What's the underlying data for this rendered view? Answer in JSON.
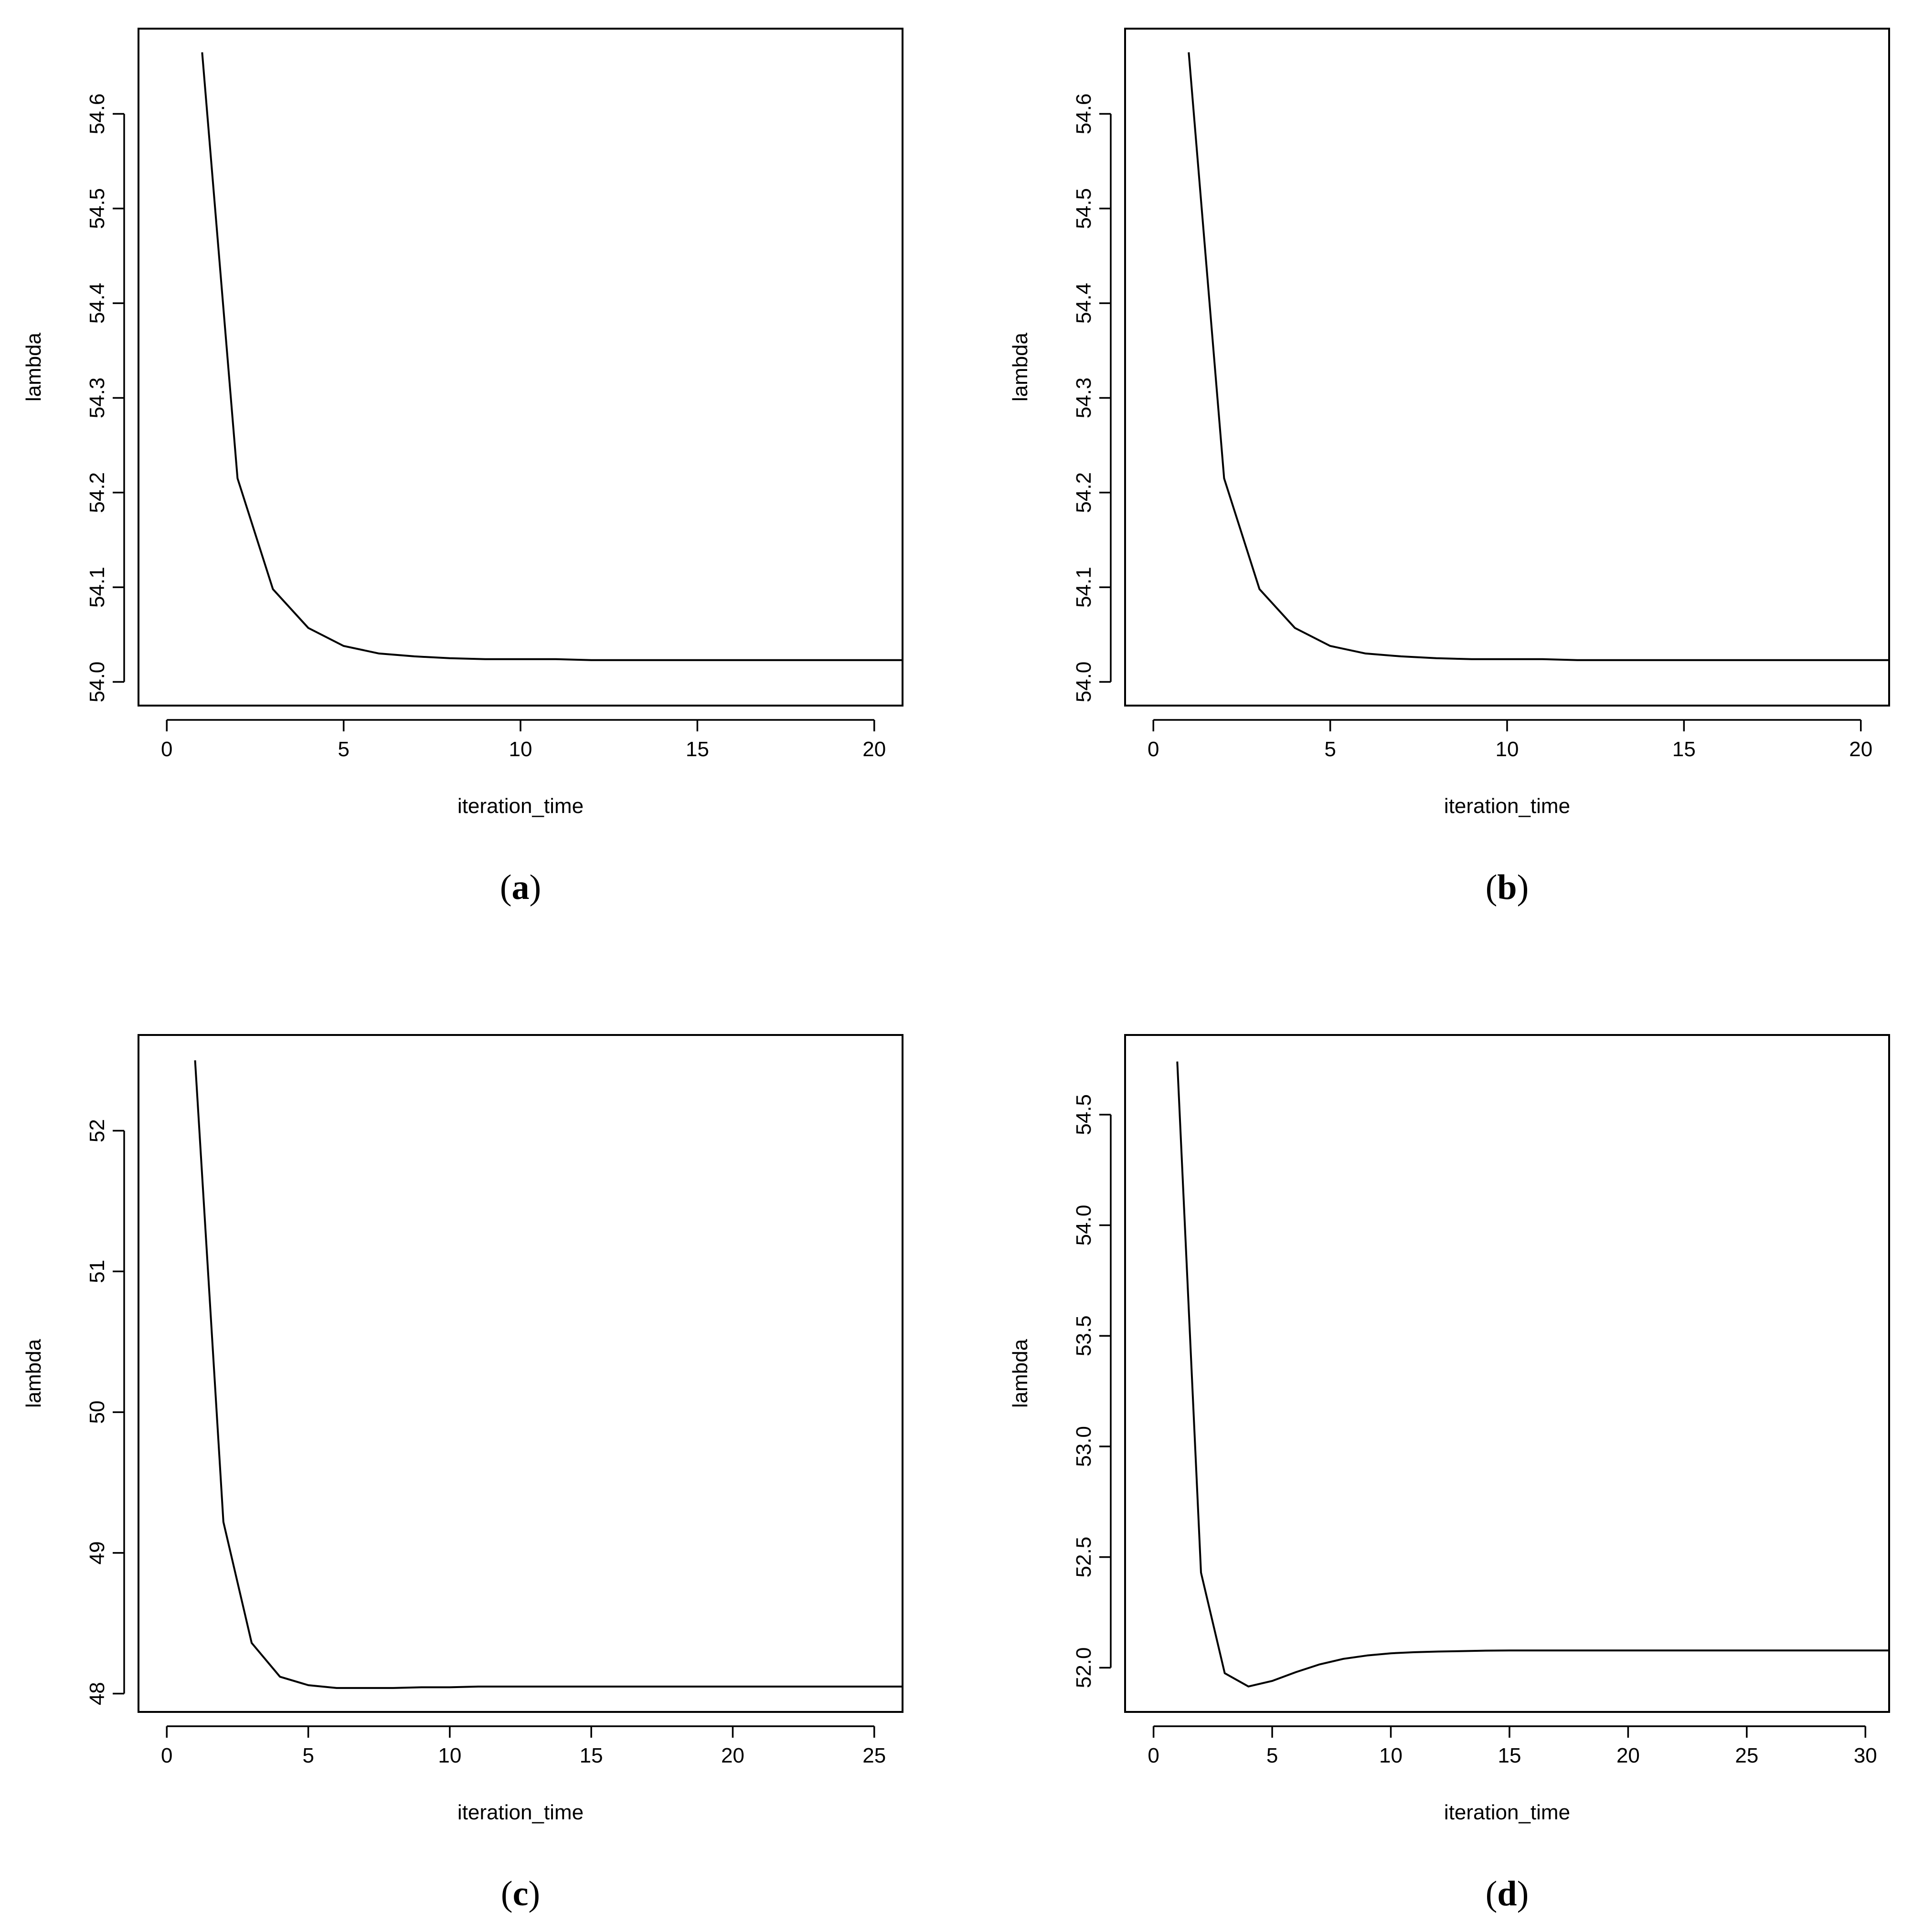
{
  "chart_data": [
    {
      "type": "line",
      "caption": "a",
      "xlabel": "iteration_time",
      "ylabel": "lambda",
      "xlim": [
        -0.8,
        20.8
      ],
      "ylim": [
        53.975,
        54.69
      ],
      "xticks": [
        0,
        5,
        10,
        15,
        20
      ],
      "yticks": [
        54.0,
        54.1,
        54.2,
        54.3,
        54.4,
        54.5,
        54.6
      ],
      "ytick_decimals": 1,
      "grid": false,
      "x": [
        1,
        2,
        3,
        4,
        5,
        6,
        7,
        8,
        9,
        10,
        11,
        12,
        13,
        14,
        15,
        16,
        17,
        18,
        19,
        20,
        21
      ],
      "y": [
        54.665,
        54.215,
        54.098,
        54.057,
        54.038,
        54.03,
        54.027,
        54.025,
        54.024,
        54.024,
        54.024,
        54.023,
        54.023,
        54.023,
        54.023,
        54.023,
        54.023,
        54.023,
        54.023,
        54.023,
        54.023
      ]
    },
    {
      "type": "line",
      "caption": "b",
      "xlabel": "iteration_time",
      "ylabel": "lambda",
      "xlim": [
        -0.8,
        20.8
      ],
      "ylim": [
        53.975,
        54.69
      ],
      "xticks": [
        0,
        5,
        10,
        15,
        20
      ],
      "yticks": [
        54.0,
        54.1,
        54.2,
        54.3,
        54.4,
        54.5,
        54.6
      ],
      "ytick_decimals": 1,
      "grid": false,
      "x": [
        1,
        2,
        3,
        4,
        5,
        6,
        7,
        8,
        9,
        10,
        11,
        12,
        13,
        14,
        15,
        16,
        17,
        18,
        19,
        20,
        21
      ],
      "y": [
        54.665,
        54.215,
        54.098,
        54.057,
        54.038,
        54.03,
        54.027,
        54.025,
        54.024,
        54.024,
        54.024,
        54.023,
        54.023,
        54.023,
        54.023,
        54.023,
        54.023,
        54.023,
        54.023,
        54.023,
        54.023
      ]
    },
    {
      "type": "line",
      "caption": "c",
      "xlabel": "iteration_time",
      "ylabel": "lambda",
      "xlim": [
        -1.0,
        26.0
      ],
      "ylim": [
        47.87,
        52.68
      ],
      "xticks": [
        0,
        5,
        10,
        15,
        20,
        25
      ],
      "yticks": [
        48,
        49,
        50,
        51,
        52
      ],
      "ytick_decimals": 0,
      "grid": false,
      "x": [
        1,
        2,
        3,
        4,
        5,
        6,
        7,
        8,
        9,
        10,
        11,
        12,
        13,
        14,
        15,
        16,
        17,
        18,
        19,
        20,
        21,
        22,
        23,
        24,
        25,
        26
      ],
      "y": [
        52.5,
        49.22,
        48.36,
        48.12,
        48.06,
        48.04,
        48.04,
        48.04,
        48.045,
        48.045,
        48.05,
        48.05,
        48.05,
        48.05,
        48.05,
        48.05,
        48.05,
        48.05,
        48.05,
        48.05,
        48.05,
        48.05,
        48.05,
        48.05,
        48.05,
        48.05
      ]
    },
    {
      "type": "line",
      "caption": "d",
      "xlabel": "iteration_time",
      "ylabel": "lambda",
      "xlim": [
        -1.2,
        31.0
      ],
      "ylim": [
        51.8,
        54.86
      ],
      "xticks": [
        0,
        5,
        10,
        15,
        20,
        25,
        30
      ],
      "yticks": [
        52.0,
        52.5,
        53.0,
        53.5,
        54.0,
        54.5
      ],
      "ytick_decimals": 1,
      "grid": false,
      "x": [
        1,
        2,
        3,
        4,
        5,
        6,
        7,
        8,
        9,
        10,
        11,
        12,
        13,
        14,
        15,
        16,
        17,
        18,
        19,
        20,
        21,
        22,
        23,
        24,
        25,
        26,
        27,
        28,
        29,
        30,
        31
      ],
      "y": [
        54.74,
        52.43,
        51.975,
        51.915,
        51.94,
        51.98,
        52.015,
        52.04,
        52.055,
        52.065,
        52.07,
        52.073,
        52.075,
        52.077,
        52.078,
        52.078,
        52.078,
        52.078,
        52.078,
        52.078,
        52.078,
        52.078,
        52.078,
        52.078,
        52.078,
        52.078,
        52.078,
        52.078,
        52.078,
        52.078,
        52.078
      ]
    }
  ]
}
